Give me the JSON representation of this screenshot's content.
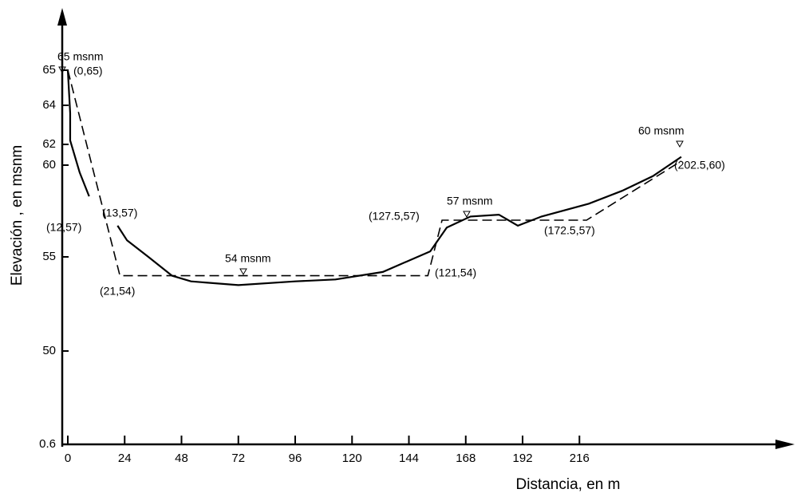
{
  "chart_data": {
    "type": "line",
    "x_label": "Distancia, en m",
    "y_label": "Elevación , en msnm",
    "xlim": [
      0,
      290
    ],
    "ylim": [
      0.6,
      65
    ],
    "xticks": [
      0,
      24,
      48,
      72,
      96,
      120,
      144,
      168,
      192,
      216
    ],
    "yticks": [
      0.6,
      50,
      55,
      60,
      62,
      64,
      65
    ],
    "series": [
      {
        "style": "solid",
        "color": "#000000",
        "x": [
          0,
          1,
          1,
          5,
          9,
          null,
          21,
          25,
          34,
          44,
          52,
          72,
          96,
          113,
          133,
          153,
          160,
          170,
          182,
          190,
          200,
          220,
          234,
          247,
          259
        ],
        "values": [
          65,
          63.6,
          62.2,
          59.6,
          58.3,
          null,
          56.7,
          55.9,
          55,
          54,
          53.7,
          53.5,
          53.7,
          53.8,
          54.2,
          55.3,
          56.6,
          57.2,
          57.3,
          56.7,
          57.2,
          57.9,
          58.6,
          59.4,
          60.8
        ]
      },
      {
        "style": "dashed",
        "color": "#000000",
        "x": [
          0,
          22,
          152,
          158,
          219,
          259
        ],
        "values": [
          65,
          54,
          54,
          57,
          57,
          60.4
        ]
      }
    ],
    "annotations": [
      "65 msnm",
      "(0,65)",
      "(12,57)",
      "(13,57)",
      "(21,54)",
      "54 msnm",
      "(121,54)",
      "(127.5,57)",
      "57 msnm",
      "(172.5,57)",
      "60 msnm",
      "(202.5,60)"
    ]
  }
}
